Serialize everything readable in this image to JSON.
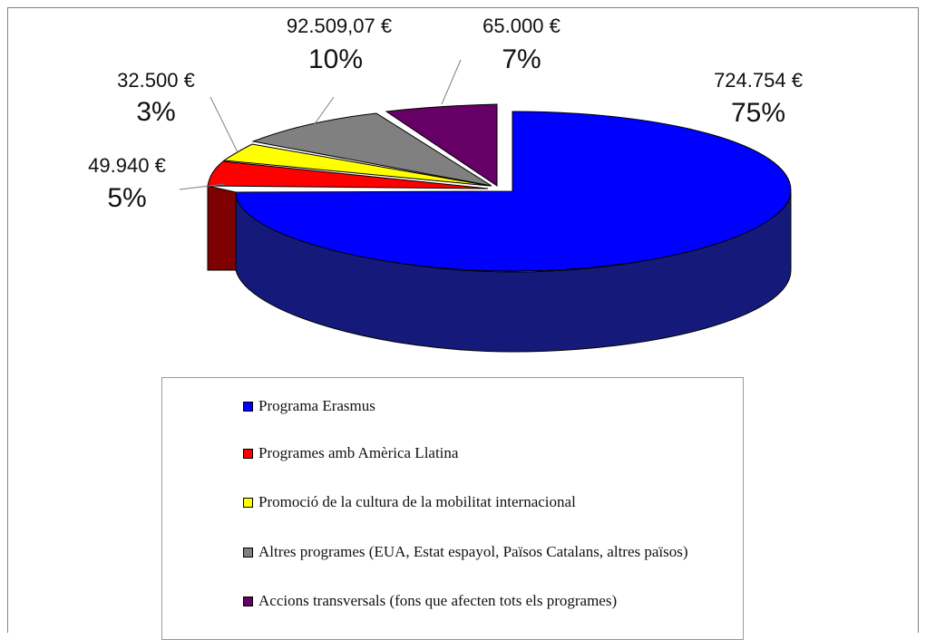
{
  "chart_data": {
    "type": "pie",
    "three_d": true,
    "exploded": true,
    "slices": [
      {
        "label": "Programa Erasmus",
        "value": 724754,
        "value_text": "724.754 €",
        "percent_text": "75%",
        "color": "#0000ff",
        "side_color": "#151a7a"
      },
      {
        "label": "Programes amb Amèrica Llatina",
        "value": 49940,
        "value_text": "49.940 €",
        "percent_text": "5%",
        "color": "#ff0000",
        "side_color": "#7f0000"
      },
      {
        "label": "Promoció de la cultura de la mobilitat internacional",
        "value": 32500,
        "value_text": "32.500 €",
        "percent_text": "3%",
        "color": "#ffff00",
        "side_color": "#808000"
      },
      {
        "label": "Altres programes (EUA, Estat espayol, Països Catalans, altres països)",
        "value": 92509.07,
        "value_text": "92.509,07 €",
        "percent_text": "10%",
        "color": "#808080",
        "side_color": "#404040"
      },
      {
        "label": "Accions transversals (fons que afecten tots els programes)",
        "value": 65000,
        "value_text": "65.000 €",
        "percent_text": "7%",
        "color": "#660066",
        "side_color": "#330033"
      }
    ],
    "legend_position": "bottom"
  }
}
